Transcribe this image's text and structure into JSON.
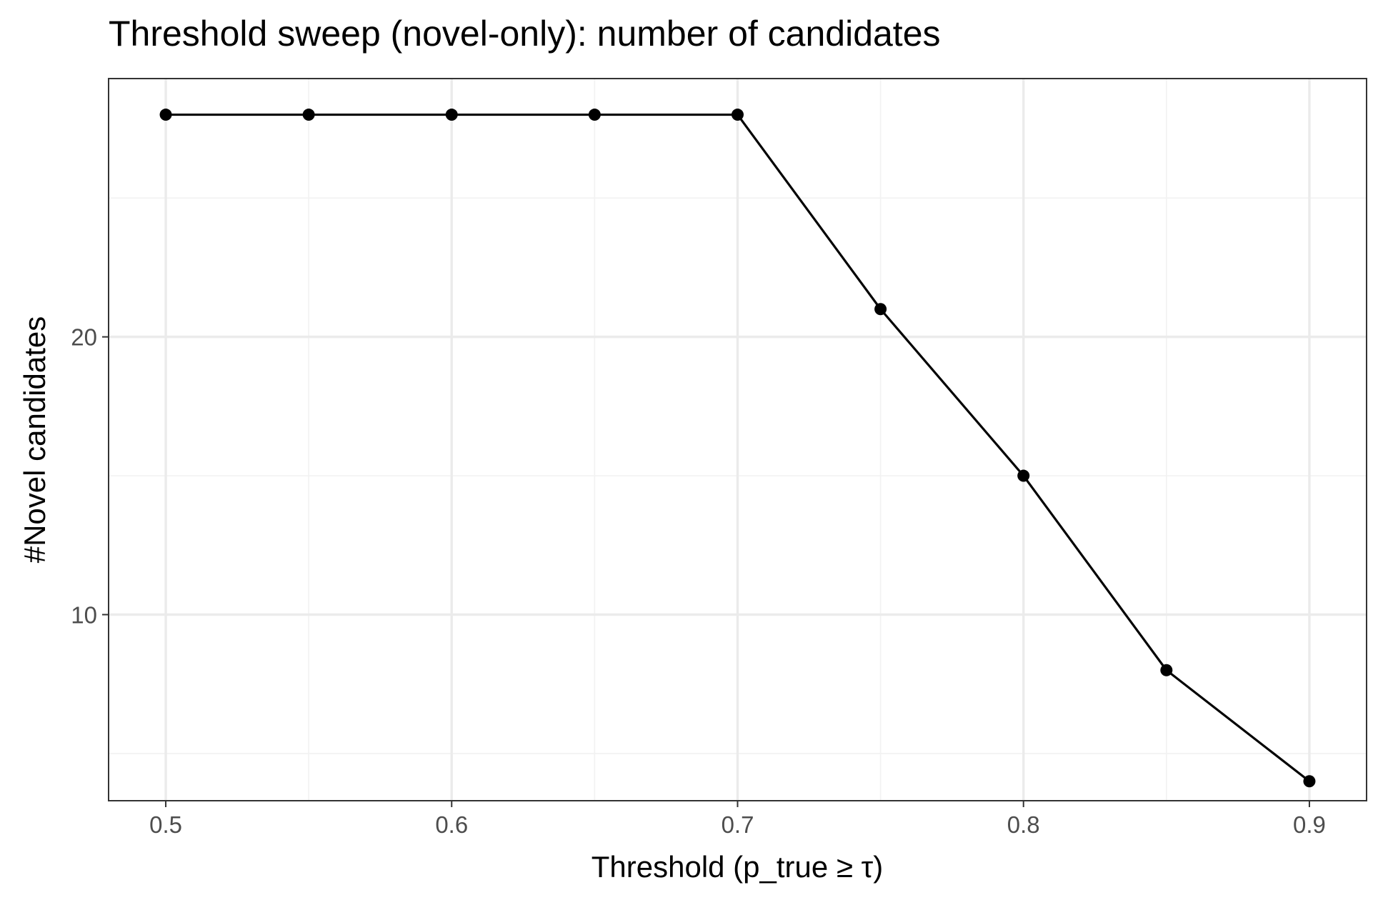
{
  "chart_data": {
    "type": "line",
    "title": "Threshold sweep (novel-only): number of candidates",
    "xlabel": "Threshold (p_true ≥ τ)",
    "ylabel": "#Novel candidates",
    "x": [
      0.5,
      0.55,
      0.6,
      0.65,
      0.7,
      0.75,
      0.8,
      0.85,
      0.9
    ],
    "series": [
      {
        "values": [
          28,
          28,
          28,
          28,
          28,
          21,
          15,
          8,
          4
        ],
        "color": "#000000"
      }
    ],
    "xlim": [
      0.48,
      0.92
    ],
    "ylim": [
      3.3,
      29.3
    ],
    "x_ticks": [
      0.5,
      0.6,
      0.7,
      0.8,
      0.9
    ],
    "x_tick_labels": [
      "0.5",
      "0.6",
      "0.7",
      "0.8",
      "0.9"
    ],
    "x_minor_ticks": [
      0.55,
      0.65,
      0.75,
      0.85
    ],
    "y_ticks": [
      10,
      20
    ],
    "y_tick_labels": [
      "10",
      "20"
    ],
    "y_minor_ticks": [
      5,
      15,
      25
    ],
    "grid": true,
    "legend": "none"
  }
}
